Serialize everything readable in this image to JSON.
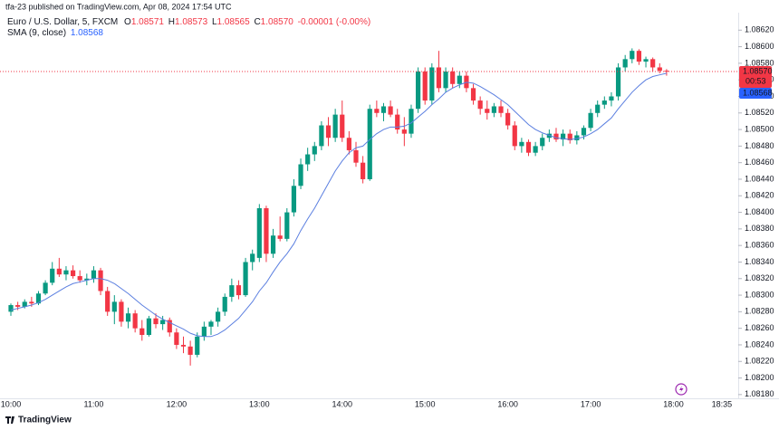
{
  "header": {
    "title": "tfa-23 published on TradingView.com, Apr 08, 2024 17:54 UTC"
  },
  "footer": {
    "brand": "TradingView"
  },
  "chart_data": {
    "type": "candlestick",
    "title": "Euro / U.S. Dollar, 5, FXCM",
    "ohlc_letters": [
      "O",
      "H",
      "L",
      "C"
    ],
    "last_price_label": "1.08570",
    "change": "-0.00001 (-0.00%)",
    "countdown": "00:53",
    "up_color": "#089981",
    "down_color": "#f23645",
    "x": [
      "10:00",
      "10:05",
      "10:10",
      "10:15",
      "10:20",
      "10:25",
      "10:30",
      "10:35",
      "10:40",
      "10:45",
      "10:50",
      "10:55",
      "11:00",
      "11:05",
      "11:10",
      "11:15",
      "11:20",
      "11:25",
      "11:30",
      "11:35",
      "11:40",
      "11:45",
      "11:50",
      "11:55",
      "12:00",
      "12:05",
      "12:10",
      "12:15",
      "12:20",
      "12:25",
      "12:30",
      "12:35",
      "12:40",
      "12:45",
      "12:50",
      "12:55",
      "13:00",
      "13:05",
      "13:10",
      "13:15",
      "13:20",
      "13:25",
      "13:30",
      "13:35",
      "13:40",
      "13:45",
      "13:50",
      "13:55",
      "14:00",
      "14:05",
      "14:10",
      "14:15",
      "14:20",
      "14:25",
      "14:30",
      "14:35",
      "14:40",
      "14:45",
      "14:50",
      "14:55",
      "15:00",
      "15:05",
      "15:10",
      "15:15",
      "15:20",
      "15:25",
      "15:30",
      "15:35",
      "15:40",
      "15:45",
      "15:50",
      "15:55",
      "16:00",
      "16:05",
      "16:10",
      "16:15",
      "16:20",
      "16:25",
      "16:30",
      "16:35",
      "16:40",
      "16:45",
      "16:50",
      "16:55",
      "17:00",
      "17:05",
      "17:10",
      "17:15",
      "17:20",
      "17:25",
      "17:30",
      "17:35",
      "17:40",
      "17:45",
      "17:50",
      "17:55"
    ],
    "open": [
      1.0828,
      1.08288,
      1.08286,
      1.08292,
      1.0829,
      1.08302,
      1.08315,
      1.08332,
      1.08325,
      1.0833,
      1.08323,
      1.08318,
      1.0832,
      1.0833,
      1.08305,
      1.0828,
      1.08292,
      1.08268,
      1.08278,
      1.0826,
      1.08252,
      1.08272,
      1.08265,
      1.0827,
      1.08255,
      1.0824,
      1.08238,
      1.08228,
      1.0825,
      1.08262,
      1.08268,
      1.0828,
      1.08298,
      1.08312,
      1.083,
      1.0834,
      1.08345,
      1.08405,
      1.0835,
      1.08372,
      1.08368,
      1.084,
      1.08432,
      1.08458,
      1.0847,
      1.0848,
      1.08505,
      1.0849,
      1.08518,
      1.0849,
      1.08475,
      1.0846,
      1.0844,
      1.08525,
      1.0852,
      1.08528,
      1.08518,
      1.085,
      1.08495,
      1.08525,
      1.0857,
      1.08535,
      1.08575,
      1.0855,
      1.0857,
      1.08555,
      1.08565,
      1.0855,
      1.08535,
      1.08525,
      1.0852,
      1.08528,
      1.0852,
      1.08505,
      1.0848,
      1.08485,
      1.08472,
      1.0848,
      1.0849,
      1.08495,
      1.08488,
      1.08495,
      1.08487,
      1.08493,
      1.08502,
      1.0852,
      1.0853,
      1.08535,
      1.0854,
      1.08575,
      1.08585,
      1.08595,
      1.08582,
      1.08585,
      1.08575,
      1.08571
    ],
    "high": [
      1.0829,
      1.08292,
      1.08295,
      1.08298,
      1.08305,
      1.08318,
      1.0834,
      1.08345,
      1.08335,
      1.08336,
      1.0833,
      1.08326,
      1.08335,
      1.08333,
      1.0831,
      1.083,
      1.08295,
      1.08285,
      1.08282,
      1.0827,
      1.08275,
      1.08278,
      1.08275,
      1.08273,
      1.0826,
      1.0825,
      1.08245,
      1.08255,
      1.08268,
      1.0827,
      1.08285,
      1.08302,
      1.0832,
      1.08318,
      1.08345,
      1.08355,
      1.0841,
      1.08408,
      1.0838,
      1.08395,
      1.08405,
      1.0844,
      1.08465,
      1.08478,
      1.08485,
      1.0851,
      1.08515,
      1.08525,
      1.08535,
      1.08498,
      1.08485,
      1.08468,
      1.0853,
      1.08535,
      1.08532,
      1.08535,
      1.08525,
      1.08515,
      1.0853,
      1.08575,
      1.08575,
      1.0858,
      1.08595,
      1.08575,
      1.08575,
      1.0857,
      1.0857,
      1.08555,
      1.0854,
      1.08535,
      1.08532,
      1.08535,
      1.08525,
      1.0851,
      1.0849,
      1.08488,
      1.08485,
      1.08495,
      1.085,
      1.08502,
      1.085,
      1.085,
      1.08498,
      1.08505,
      1.08525,
      1.08535,
      1.0854,
      1.08545,
      1.0858,
      1.0859,
      1.08598,
      1.08597,
      1.08588,
      1.08587,
      1.0858,
      1.08573
    ],
    "low": [
      1.08275,
      1.08282,
      1.08284,
      1.08286,
      1.08288,
      1.083,
      1.08312,
      1.08322,
      1.08318,
      1.0832,
      1.08315,
      1.08312,
      1.08315,
      1.083,
      1.08275,
      1.08265,
      1.08262,
      1.0826,
      1.08255,
      1.08245,
      1.0825,
      1.0826,
      1.08258,
      1.0825,
      1.08235,
      1.0823,
      1.08215,
      1.08225,
      1.08245,
      1.08252,
      1.08262,
      1.08275,
      1.08292,
      1.08295,
      1.08298,
      1.0833,
      1.0834,
      1.0834,
      1.08345,
      1.08365,
      1.08365,
      1.08395,
      1.08428,
      1.0845,
      1.08462,
      1.08475,
      1.0848,
      1.08485,
      1.08485,
      1.0847,
      1.08455,
      1.08435,
      1.08438,
      1.08515,
      1.0851,
      1.08515,
      1.08495,
      1.0848,
      1.0849,
      1.0852,
      1.0853,
      1.0853,
      1.08545,
      1.08545,
      1.0855,
      1.0855,
      1.08545,
      1.0853,
      1.08518,
      1.08512,
      1.08515,
      1.08515,
      1.085,
      1.08475,
      1.08472,
      1.08468,
      1.08468,
      1.08475,
      1.08485,
      1.08485,
      1.0848,
      1.08483,
      1.08482,
      1.08488,
      1.08498,
      1.08515,
      1.08525,
      1.08528,
      1.08535,
      1.0857,
      1.0858,
      1.08578,
      1.08575,
      1.0857,
      1.08568,
      1.08565
    ],
    "close": [
      1.08288,
      1.08286,
      1.08292,
      1.0829,
      1.08302,
      1.08315,
      1.08332,
      1.08325,
      1.0833,
      1.08323,
      1.08318,
      1.0832,
      1.0833,
      1.08305,
      1.0828,
      1.08292,
      1.08268,
      1.08278,
      1.0826,
      1.08252,
      1.08272,
      1.08265,
      1.0827,
      1.08255,
      1.0824,
      1.08238,
      1.08228,
      1.0825,
      1.08262,
      1.08268,
      1.0828,
      1.08298,
      1.08312,
      1.083,
      1.0834,
      1.0835,
      1.08405,
      1.0835,
      1.08372,
      1.08368,
      1.084,
      1.08432,
      1.08458,
      1.0847,
      1.0848,
      1.08505,
      1.0849,
      1.08518,
      1.0849,
      1.08475,
      1.0846,
      1.0844,
      1.08525,
      1.0852,
      1.08528,
      1.08518,
      1.085,
      1.08495,
      1.08525,
      1.0857,
      1.08535,
      1.08575,
      1.0855,
      1.0857,
      1.08555,
      1.08565,
      1.0855,
      1.08535,
      1.08525,
      1.0852,
      1.08528,
      1.0852,
      1.08505,
      1.0848,
      1.08485,
      1.08472,
      1.0848,
      1.0849,
      1.08495,
      1.08488,
      1.08495,
      1.08487,
      1.08493,
      1.08502,
      1.0852,
      1.0853,
      1.08535,
      1.0854,
      1.08575,
      1.08585,
      1.08595,
      1.08582,
      1.08585,
      1.08575,
      1.08571,
      1.0857
    ],
    "sma": {
      "name": "SMA (9, close)",
      "color": "#5b7fe0",
      "values": [
        1.08282,
        1.08284,
        1.08286,
        1.08288,
        1.08291,
        1.08295,
        1.083,
        1.08305,
        1.0831,
        1.08314,
        1.08316,
        1.08318,
        1.0832,
        1.0832,
        1.08318,
        1.08314,
        1.08308,
        1.08302,
        1.08295,
        1.08288,
        1.08282,
        1.08276,
        1.08271,
        1.08267,
        1.08263,
        1.08259,
        1.08254,
        1.08251,
        1.0825,
        1.0825,
        1.08253,
        1.08258,
        1.08265,
        1.08272,
        1.08282,
        1.08292,
        1.08305,
        1.08315,
        1.08328,
        1.0834,
        1.0835,
        1.08362,
        1.08378,
        1.08392,
        1.08405,
        1.0842,
        1.08435,
        1.0845,
        1.08462,
        1.08472,
        1.08478,
        1.0848,
        1.08488,
        1.08495,
        1.085,
        1.08503,
        1.08503,
        1.08504,
        1.08508,
        1.08515,
        1.08522,
        1.0853,
        1.08537,
        1.08545,
        1.0855,
        1.08554,
        1.08557,
        1.08556,
        1.08552,
        1.08547,
        1.08542,
        1.08536,
        1.0853,
        1.08522,
        1.08514,
        1.08506,
        1.085,
        1.08496,
        1.08493,
        1.0849,
        1.08489,
        1.08488,
        1.08489,
        1.08491,
        1.08495,
        1.085,
        1.08507,
        1.08514,
        1.08525,
        1.08535,
        1.08545,
        1.08553,
        1.0856,
        1.08564,
        1.08566,
        1.08568
      ]
    },
    "ylim": [
      1.0817,
      1.0864
    ],
    "yticks": [
      {
        "value": 1.0862,
        "label": "1.08620"
      },
      {
        "value": 1.086,
        "label": "1.08600"
      },
      {
        "value": 1.0858,
        "label": "1.08580"
      },
      {
        "value": 1.0856,
        "label": "1.08560"
      },
      {
        "value": 1.0854,
        "label": "1.08540"
      },
      {
        "value": 1.0852,
        "label": "1.08520"
      },
      {
        "value": 1.085,
        "label": "1.08500"
      },
      {
        "value": 1.0848,
        "label": "1.08480"
      },
      {
        "value": 1.0846,
        "label": "1.08460"
      },
      {
        "value": 1.0844,
        "label": "1.08440"
      },
      {
        "value": 1.0842,
        "label": "1.08420"
      },
      {
        "value": 1.084,
        "label": "1.08400"
      },
      {
        "value": 1.0838,
        "label": "1.08380"
      },
      {
        "value": 1.0836,
        "label": "1.08360"
      },
      {
        "value": 1.0834,
        "label": "1.08340"
      },
      {
        "value": 1.0832,
        "label": "1.08320"
      },
      {
        "value": 1.083,
        "label": "1.08300"
      },
      {
        "value": 1.0828,
        "label": "1.08280"
      },
      {
        "value": 1.0826,
        "label": "1.08260"
      },
      {
        "value": 1.0824,
        "label": "1.08240"
      },
      {
        "value": 1.0822,
        "label": "1.08220"
      },
      {
        "value": 1.082,
        "label": "1.08200"
      },
      {
        "value": 1.0818,
        "label": "1.08180"
      }
    ],
    "xticks": [
      "10:00",
      "11:00",
      "12:00",
      "13:00",
      "14:00",
      "15:00",
      "16:00",
      "17:00",
      "18:00",
      "18:35"
    ],
    "grid": false
  }
}
